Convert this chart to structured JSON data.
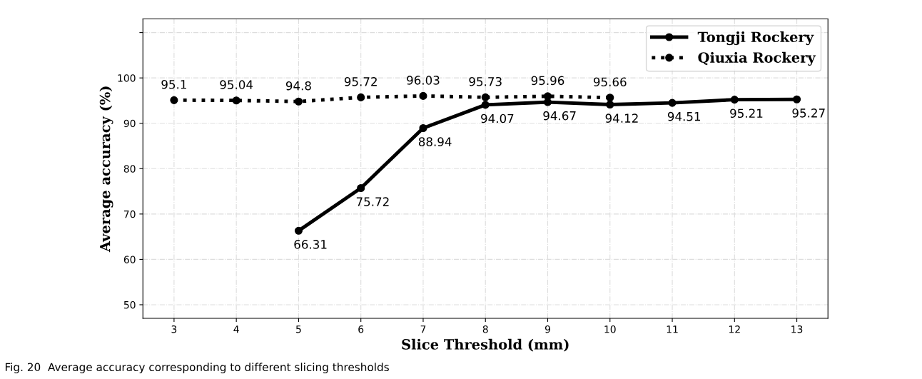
{
  "chart_data": {
    "type": "line",
    "xlabel": "Slice Threshold (mm)",
    "ylabel": "Average accuracy (%)",
    "series": [
      {
        "name": "Tongji Rockery",
        "color": "#000000",
        "line_style": "solid",
        "x": [
          5,
          6,
          7,
          8,
          9,
          10,
          11,
          12,
          13
        ],
        "values": [
          66.31,
          75.72,
          88.94,
          94.07,
          94.67,
          94.12,
          94.51,
          95.21,
          95.27
        ]
      },
      {
        "name": "Qiuxia Rockery",
        "color": "#000000",
        "line_style": "dotted",
        "x": [
          3,
          4,
          5,
          6,
          7,
          8,
          9,
          10
        ],
        "values": [
          95.1,
          95.04,
          94.8,
          95.72,
          96.03,
          95.73,
          95.96,
          95.66
        ]
      }
    ],
    "xlim": [
      2.5,
      13.5
    ],
    "xticks": [
      3,
      4,
      5,
      6,
      7,
      8,
      9,
      10,
      11,
      12,
      13
    ],
    "ylim": [
      47,
      113
    ],
    "yticks": [
      50,
      60,
      70,
      80,
      90,
      100,
      {
        "value": 110,
        "label": null
      }
    ],
    "grid": true,
    "legend": "top right",
    "marker": "circle",
    "data_labels": true,
    "annotations": [
      "Fig. 20  Average accuracy corresponding to different slicing thresholds"
    ]
  }
}
